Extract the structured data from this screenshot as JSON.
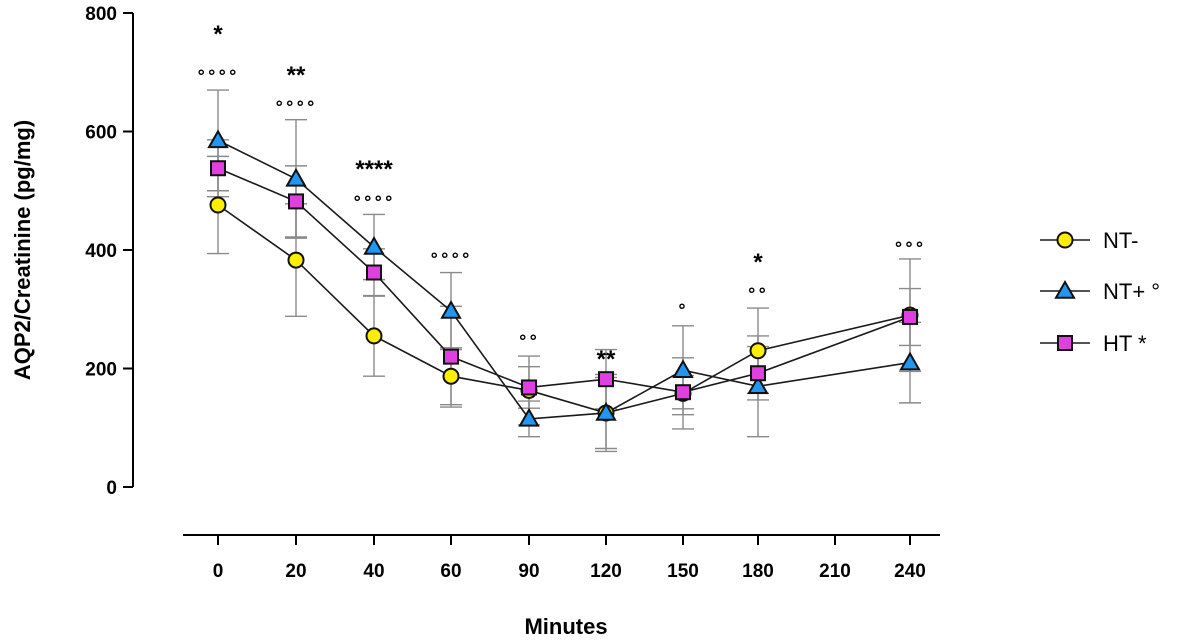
{
  "chart_data": {
    "type": "line",
    "title": "",
    "xlabel": "Minutes",
    "ylabel": "AQP2/Creatinine (pg/mg)",
    "ylim": [
      0,
      800
    ],
    "yticks": [
      0,
      200,
      400,
      600,
      800
    ],
    "categories": [
      "0",
      "20",
      "40",
      "60",
      "90",
      "120",
      "150",
      "180",
      "210",
      "240"
    ],
    "grid": false,
    "legend_position": "right",
    "series": [
      {
        "name": "NT-",
        "legend_label": "NT-",
        "marker": "circle",
        "color": "#ffee00",
        "values": [
          476,
          383,
          255,
          187,
          163,
          125,
          158,
          230,
          null,
          290
        ],
        "error": [
          82,
          95,
          68,
          48,
          58,
          65,
          60,
          72,
          null,
          95
        ]
      },
      {
        "name": "NT+",
        "legend_label": "NT+ °",
        "marker": "triangle",
        "color": "#2196f3",
        "values": [
          585,
          520,
          405,
          297,
          115,
          125,
          197,
          170,
          null,
          210
        ],
        "error": [
          85,
          100,
          55,
          65,
          30,
          60,
          75,
          85,
          null,
          68
        ]
      },
      {
        "name": "HT",
        "legend_label": "HT *",
        "marker": "square",
        "color": "#e040e0",
        "values": [
          538,
          482,
          362,
          220,
          168,
          182,
          160,
          192,
          null,
          287
        ],
        "error": [
          48,
          60,
          40,
          85,
          35,
          50,
          28,
          45,
          null,
          48
        ]
      }
    ],
    "annotations": [
      {
        "x": "0",
        "stars": "*",
        "circles": "°°°°"
      },
      {
        "x": "20",
        "stars": "**",
        "circles": "°°°°"
      },
      {
        "x": "40",
        "stars": "****",
        "circles": "°°°°"
      },
      {
        "x": "60",
        "stars": "",
        "circles": "°°°°"
      },
      {
        "x": "90",
        "stars": "",
        "circles": "°°"
      },
      {
        "x": "120",
        "stars": "**",
        "circles": ""
      },
      {
        "x": "150",
        "stars": "",
        "circles": "°"
      },
      {
        "x": "180",
        "stars": "*",
        "circles": "°°"
      },
      {
        "x": "240",
        "stars": "",
        "circles": "°°°"
      }
    ]
  }
}
